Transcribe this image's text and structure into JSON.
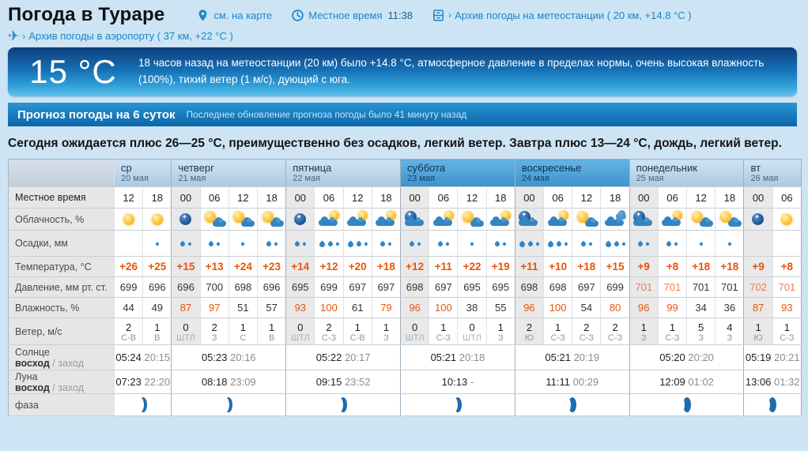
{
  "header": {
    "title": "Погода в Тураре",
    "map_link": "см. на карте",
    "local_time_label": "Местное время",
    "local_time_value": "11:38",
    "station_link": "Архив погоды на метеостанции ( 20 км, +14.8 °C )",
    "airport_link": "Архив погоды в аэропорту ( 37 км, +22 °C )"
  },
  "banner": {
    "temperature": "15 °C",
    "description": "18 часов назад на метеостанции (20 км) было +14.8 °C, атмосферное давление в пределах нормы, очень высокая влажность (100%), тихий ветер (1 м/с), дующий с юга."
  },
  "forecast_bar": {
    "title": "Прогноз погоды на 6 суток",
    "update_note": "Последнее обновление прогноза погоды было 41 минуту назад"
  },
  "summary": "Сегодня ожидается плюс 26—25 °C, преимущественно без осадков, легкий ветер. Завтра плюс 13—24 °C, дождь, легкий ветер.",
  "colors": {
    "accent_blue": "#1c86c7",
    "temp_orange": "#e8540a",
    "pressure_red": "#ee7c52",
    "crescent_blue": "#1e6cae"
  },
  "table": {
    "row_labels": {
      "local_time": "Местное время",
      "cloudiness": "Облачность, %",
      "precipitation": "Осадки, мм",
      "temperature": "Температура, °C",
      "pressure": "Давление, мм рт. ст.",
      "humidity": "Влажность, %",
      "wind": "Ветер, м/с",
      "sun": "Солнце",
      "moon": "Луна",
      "rise": "восход",
      "set": "заход",
      "phase": "фаза"
    },
    "days": [
      {
        "name": "ср",
        "date": "20 мая",
        "weekend": false,
        "hours": [
          "12",
          "18"
        ],
        "sun": [
          "05:24",
          "20:15"
        ],
        "moon": [
          "07:23",
          "22:20"
        ],
        "phase": 4
      },
      {
        "name": "четверг",
        "date": "21 мая",
        "weekend": false,
        "hours": [
          "00",
          "06",
          "12",
          "18"
        ],
        "sun": [
          "05:23",
          "20:16"
        ],
        "moon": [
          "08:18",
          "23:09"
        ],
        "phase": 4
      },
      {
        "name": "пятница",
        "date": "22 мая",
        "weekend": false,
        "hours": [
          "00",
          "06",
          "12",
          "18"
        ],
        "sun": [
          "05:22",
          "20:17"
        ],
        "moon": [
          "09:15",
          "23:52"
        ],
        "phase": 5
      },
      {
        "name": "суббота",
        "date": "23 мая",
        "weekend": true,
        "hours": [
          "00",
          "06",
          "12",
          "18"
        ],
        "sun": [
          "05:21",
          "20:18"
        ],
        "moon": [
          "10:13",
          "-"
        ],
        "phase": 5
      },
      {
        "name": "воскресенье",
        "date": "24 мая",
        "weekend": true,
        "hours": [
          "00",
          "06",
          "12",
          "18"
        ],
        "sun": [
          "05:21",
          "20:19"
        ],
        "moon": [
          "11:11",
          "00:29"
        ],
        "phase": 7
      },
      {
        "name": "понедельник",
        "date": "25 мая",
        "weekend": false,
        "hours": [
          "00",
          "06",
          "12",
          "18"
        ],
        "sun": [
          "05:20",
          "20:20"
        ],
        "moon": [
          "12:09",
          "01:02"
        ],
        "phase": 8
      },
      {
        "name": "вт",
        "date": "26 мая",
        "weekend": false,
        "hours": [
          "00",
          "06"
        ],
        "sun": [
          "05:19",
          "20:21"
        ],
        "moon": [
          "13:06",
          "01:32"
        ],
        "phase": 8
      }
    ],
    "cloud": [
      "sun",
      "sun",
      "moon",
      "sun-cloud",
      "sun-cloud",
      "sun-cloud",
      "moon",
      "cloud-sun",
      "cloud-sun",
      "cloud-sun",
      "cloud-moon",
      "cloud-sun",
      "sun-cloud",
      "cloud-sun",
      "cloud-moon",
      "cloud-sun",
      "sun-cloud",
      "cloud",
      "cloud-moon",
      "cloud-sun",
      "sun-cloud",
      "sun-cloud",
      "moon",
      "sun"
    ],
    "precip": [
      0,
      1,
      2,
      2,
      1,
      2,
      2,
      3,
      3,
      2,
      2,
      2,
      1,
      2,
      3,
      3,
      2,
      3,
      2,
      2,
      1,
      1,
      0,
      0
    ],
    "temp": [
      "+26",
      "+25",
      "+15",
      "+13",
      "+24",
      "+23",
      "+14",
      "+12",
      "+20",
      "+18",
      "+12",
      "+11",
      "+22",
      "+19",
      "+11",
      "+10",
      "+18",
      "+15",
      "+9",
      "+8",
      "+18",
      "+18",
      "+9",
      "+8"
    ],
    "pressure": [
      699,
      696,
      696,
      700,
      698,
      696,
      695,
      699,
      697,
      697,
      698,
      697,
      695,
      695,
      698,
      698,
      697,
      699,
      701,
      701,
      701,
      701,
      702,
      701
    ],
    "pressure_red": [
      18,
      19,
      22,
      23
    ],
    "humidity": [
      44,
      49,
      87,
      97,
      51,
      57,
      93,
      100,
      61,
      79,
      96,
      100,
      38,
      55,
      96,
      100,
      54,
      80,
      96,
      99,
      34,
      36,
      87,
      93
    ],
    "wind_speed": [
      2,
      1,
      0,
      2,
      1,
      1,
      0,
      2,
      1,
      1,
      0,
      1,
      0,
      1,
      2,
      1,
      2,
      2,
      1,
      1,
      5,
      4,
      1,
      1
    ],
    "wind_dir": [
      "С-В",
      "В",
      "ШТЛ",
      "З",
      "С",
      "В",
      "ШТЛ",
      "С-З",
      "С-В",
      "З",
      "ШТЛ",
      "С-З",
      "ШТЛ",
      "З",
      "Ю",
      "С-З",
      "С-З",
      "С-З",
      "З",
      "С-З",
      "З",
      "З",
      "Ю",
      "С-З"
    ]
  }
}
